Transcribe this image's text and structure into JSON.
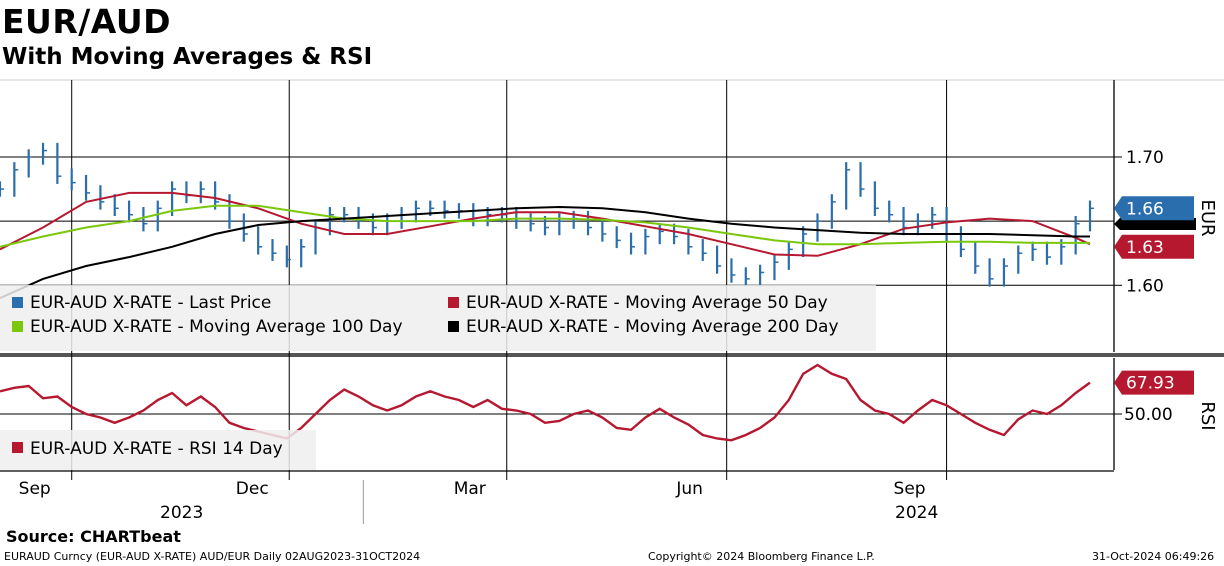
{
  "header": {
    "title": "EUR/AUD",
    "subtitle": "With Moving Averages & RSI"
  },
  "footer": {
    "source": "Source: CHARTbeat",
    "ticker_info": "EURAUD Curncy (EUR-AUD X-RATE) AUD/EUR  Daily 02AUG2023-31OCT2024",
    "copyright": "Copyright© 2024 Bloomberg Finance L.P.",
    "timestamp": "31-Oct-2024 06:49:26"
  },
  "chart_data": [
    {
      "type": "line",
      "panel": "price",
      "axis_title": "EUR",
      "ylim": [
        1.548,
        1.76
      ],
      "yticks": [
        {
          "value": 1.7,
          "label": "1.70"
        },
        {
          "value": 1.6,
          "label": "1.60"
        }
      ],
      "grid": true,
      "legend_position": "bottom-left",
      "last_value_tags": [
        {
          "label": "1.66",
          "value": 1.66,
          "color": "#2a6ead"
        },
        {
          "label": "1.63",
          "value": 1.63,
          "color": "#b5182f"
        }
      ],
      "series": [
        {
          "name": "EUR-AUD X-RATE - Last Price",
          "color": "#2a6ead",
          "style": "hlc-bars",
          "x": [
            "2023-08-02",
            "2023-08-08",
            "2023-08-14",
            "2023-08-20",
            "2023-08-26",
            "2023-09-01",
            "2023-09-07",
            "2023-09-13",
            "2023-09-19",
            "2023-09-25",
            "2023-10-01",
            "2023-10-07",
            "2023-10-13",
            "2023-10-19",
            "2023-10-25",
            "2023-10-31",
            "2023-11-06",
            "2023-11-12",
            "2023-11-18",
            "2023-11-24",
            "2023-11-30",
            "2023-12-06",
            "2023-12-12",
            "2023-12-18",
            "2023-12-24",
            "2023-12-30",
            "2024-01-05",
            "2024-01-11",
            "2024-01-17",
            "2024-01-23",
            "2024-01-29",
            "2024-02-04",
            "2024-02-10",
            "2024-02-16",
            "2024-02-22",
            "2024-02-28",
            "2024-03-05",
            "2024-03-11",
            "2024-03-17",
            "2024-03-23",
            "2024-03-29",
            "2024-04-04",
            "2024-04-10",
            "2024-04-16",
            "2024-04-22",
            "2024-04-28",
            "2024-05-04",
            "2024-05-10",
            "2024-05-16",
            "2024-05-22",
            "2024-05-28",
            "2024-06-03",
            "2024-06-09",
            "2024-06-15",
            "2024-06-21",
            "2024-06-27",
            "2024-07-03",
            "2024-07-09",
            "2024-07-15",
            "2024-07-21",
            "2024-07-27",
            "2024-08-02",
            "2024-08-08",
            "2024-08-14",
            "2024-08-20",
            "2024-08-26",
            "2024-09-01",
            "2024-09-07",
            "2024-09-13",
            "2024-09-19",
            "2024-09-25",
            "2024-10-01",
            "2024-10-07",
            "2024-10-13",
            "2024-10-19",
            "2024-10-25",
            "2024-10-31"
          ],
          "values": [
            1.675,
            1.69,
            1.7,
            1.705,
            1.685,
            1.68,
            1.672,
            1.665,
            1.66,
            1.655,
            1.648,
            1.66,
            1.675,
            1.67,
            1.675,
            1.665,
            1.65,
            1.64,
            1.63,
            1.625,
            1.62,
            1.63,
            1.645,
            1.655,
            1.655,
            1.65,
            1.645,
            1.65,
            1.655,
            1.66,
            1.66,
            1.658,
            1.658,
            1.652,
            1.655,
            1.655,
            1.65,
            1.648,
            1.645,
            1.65,
            1.652,
            1.645,
            1.64,
            1.635,
            1.63,
            1.638,
            1.642,
            1.638,
            1.63,
            1.625,
            1.615,
            1.608,
            1.605,
            1.61,
            1.618,
            1.628,
            1.64,
            1.65,
            1.665,
            1.69,
            1.675,
            1.66,
            1.655,
            1.645,
            1.65,
            1.655,
            1.64,
            1.628,
            1.615,
            1.605,
            1.615,
            1.625,
            1.628,
            1.622,
            1.63,
            1.648,
            1.66
          ]
        },
        {
          "name": "EUR-AUD X-RATE - Moving Average 50 Day",
          "color": "#b5182f",
          "x": [
            "2023-08-02",
            "2023-08-20",
            "2023-09-07",
            "2023-09-25",
            "2023-10-13",
            "2023-10-31",
            "2023-11-18",
            "2023-12-06",
            "2023-12-24",
            "2024-01-11",
            "2024-01-29",
            "2024-02-16",
            "2024-03-05",
            "2024-03-23",
            "2024-04-10",
            "2024-04-28",
            "2024-05-16",
            "2024-06-03",
            "2024-06-21",
            "2024-07-09",
            "2024-07-27",
            "2024-08-14",
            "2024-09-01",
            "2024-09-19",
            "2024-10-07",
            "2024-10-25",
            "2024-10-31"
          ],
          "values": [
            1.628,
            1.645,
            1.665,
            1.672,
            1.672,
            1.668,
            1.66,
            1.648,
            1.64,
            1.64,
            1.646,
            1.652,
            1.657,
            1.657,
            1.652,
            1.646,
            1.64,
            1.632,
            1.624,
            1.623,
            1.632,
            1.644,
            1.649,
            1.652,
            1.65,
            1.637,
            1.632
          ]
        },
        {
          "name": "EUR-AUD X-RATE - Moving Average 100 Day",
          "color": "#7ac70c",
          "x": [
            "2023-08-02",
            "2023-08-20",
            "2023-09-07",
            "2023-09-25",
            "2023-10-13",
            "2023-10-31",
            "2023-11-18",
            "2023-12-06",
            "2023-12-24",
            "2024-01-11",
            "2024-01-29",
            "2024-02-16",
            "2024-03-05",
            "2024-03-23",
            "2024-04-10",
            "2024-04-28",
            "2024-05-16",
            "2024-06-03",
            "2024-06-21",
            "2024-07-09",
            "2024-07-27",
            "2024-08-14",
            "2024-09-01",
            "2024-09-19",
            "2024-10-07",
            "2024-10-25",
            "2024-10-31"
          ],
          "values": [
            1.63,
            1.638,
            1.645,
            1.65,
            1.658,
            1.662,
            1.662,
            1.657,
            1.652,
            1.65,
            1.65,
            1.65,
            1.652,
            1.652,
            1.651,
            1.649,
            1.645,
            1.64,
            1.635,
            1.632,
            1.632,
            1.633,
            1.634,
            1.634,
            1.633,
            1.633,
            1.633
          ]
        },
        {
          "name": "EUR-AUD X-RATE - Moving Average 200 Day",
          "color": "#000000",
          "x": [
            "2023-08-02",
            "2023-08-20",
            "2023-09-07",
            "2023-09-25",
            "2023-10-13",
            "2023-10-31",
            "2023-11-18",
            "2023-12-06",
            "2023-12-24",
            "2024-01-11",
            "2024-01-29",
            "2024-02-16",
            "2024-03-05",
            "2024-03-23",
            "2024-04-10",
            "2024-04-28",
            "2024-05-16",
            "2024-06-03",
            "2024-06-21",
            "2024-07-09",
            "2024-07-27",
            "2024-08-14",
            "2024-09-01",
            "2024-09-19",
            "2024-10-07",
            "2024-10-25",
            "2024-10-31"
          ],
          "values": [
            1.59,
            1.605,
            1.615,
            1.622,
            1.63,
            1.64,
            1.647,
            1.65,
            1.652,
            1.654,
            1.656,
            1.658,
            1.66,
            1.661,
            1.66,
            1.657,
            1.652,
            1.648,
            1.645,
            1.643,
            1.641,
            1.64,
            1.64,
            1.64,
            1.639,
            1.638,
            1.638
          ]
        }
      ]
    },
    {
      "type": "line",
      "panel": "rsi",
      "axis_title": "RSI",
      "ylim": [
        18,
        82
      ],
      "yticks": [
        {
          "value": 50,
          "label": "50.00"
        }
      ],
      "grid": true,
      "legend_position": "bottom-left",
      "last_value_tags": [
        {
          "label": "67.93",
          "value": 67.93,
          "color": "#b5182f"
        }
      ],
      "series": [
        {
          "name": "EUR-AUD X-RATE - RSI 14 Day",
          "color": "#b5182f",
          "x": [
            "2023-08-02",
            "2023-08-08",
            "2023-08-14",
            "2023-08-20",
            "2023-08-26",
            "2023-09-01",
            "2023-09-07",
            "2023-09-13",
            "2023-09-19",
            "2023-09-25",
            "2023-10-01",
            "2023-10-07",
            "2023-10-13",
            "2023-10-19",
            "2023-10-25",
            "2023-10-31",
            "2023-11-06",
            "2023-11-12",
            "2023-11-18",
            "2023-11-24",
            "2023-11-30",
            "2023-12-06",
            "2023-12-12",
            "2023-12-18",
            "2023-12-24",
            "2023-12-30",
            "2024-01-05",
            "2024-01-11",
            "2024-01-17",
            "2024-01-23",
            "2024-01-29",
            "2024-02-04",
            "2024-02-10",
            "2024-02-16",
            "2024-02-22",
            "2024-02-28",
            "2024-03-05",
            "2024-03-11",
            "2024-03-17",
            "2024-03-23",
            "2024-03-29",
            "2024-04-04",
            "2024-04-10",
            "2024-04-16",
            "2024-04-22",
            "2024-04-28",
            "2024-05-04",
            "2024-05-10",
            "2024-05-16",
            "2024-05-22",
            "2024-05-28",
            "2024-06-03",
            "2024-06-09",
            "2024-06-15",
            "2024-06-21",
            "2024-06-27",
            "2024-07-03",
            "2024-07-09",
            "2024-07-15",
            "2024-07-21",
            "2024-07-27",
            "2024-08-02",
            "2024-08-08",
            "2024-08-14",
            "2024-08-20",
            "2024-08-26",
            "2024-09-01",
            "2024-09-07",
            "2024-09-13",
            "2024-09-19",
            "2024-09-25",
            "2024-10-01",
            "2024-10-07",
            "2024-10-13",
            "2024-10-19",
            "2024-10-25",
            "2024-10-31"
          ],
          "values": [
            63,
            65,
            66,
            59,
            60,
            54,
            50,
            48,
            45,
            48,
            52,
            58,
            62,
            55,
            60,
            54,
            45,
            42,
            40,
            38,
            36,
            42,
            50,
            58,
            64,
            60,
            55,
            52,
            55,
            60,
            63,
            60,
            58,
            54,
            58,
            53,
            52,
            50,
            45,
            46,
            50,
            52,
            48,
            42,
            41,
            48,
            53,
            48,
            44,
            38,
            36,
            35,
            38,
            42,
            48,
            58,
            73,
            78,
            73,
            70,
            58,
            52,
            50,
            45,
            52,
            58,
            55,
            50,
            45,
            41,
            38,
            47,
            52,
            50,
            55,
            62,
            67.93
          ]
        }
      ]
    },
    {
      "type": "axis",
      "panel": "x-axis",
      "month_ticks": [
        {
          "label": "Sep",
          "date": "2023-09-01"
        },
        {
          "label": "Dec",
          "date": "2023-12-01"
        },
        {
          "label": "Mar",
          "date": "2024-03-01"
        },
        {
          "label": "Jun",
          "date": "2024-06-01"
        },
        {
          "label": "Sep",
          "date": "2024-09-01"
        }
      ],
      "year_labels": [
        {
          "label": "2023"
        },
        {
          "label": "2024"
        }
      ]
    }
  ]
}
